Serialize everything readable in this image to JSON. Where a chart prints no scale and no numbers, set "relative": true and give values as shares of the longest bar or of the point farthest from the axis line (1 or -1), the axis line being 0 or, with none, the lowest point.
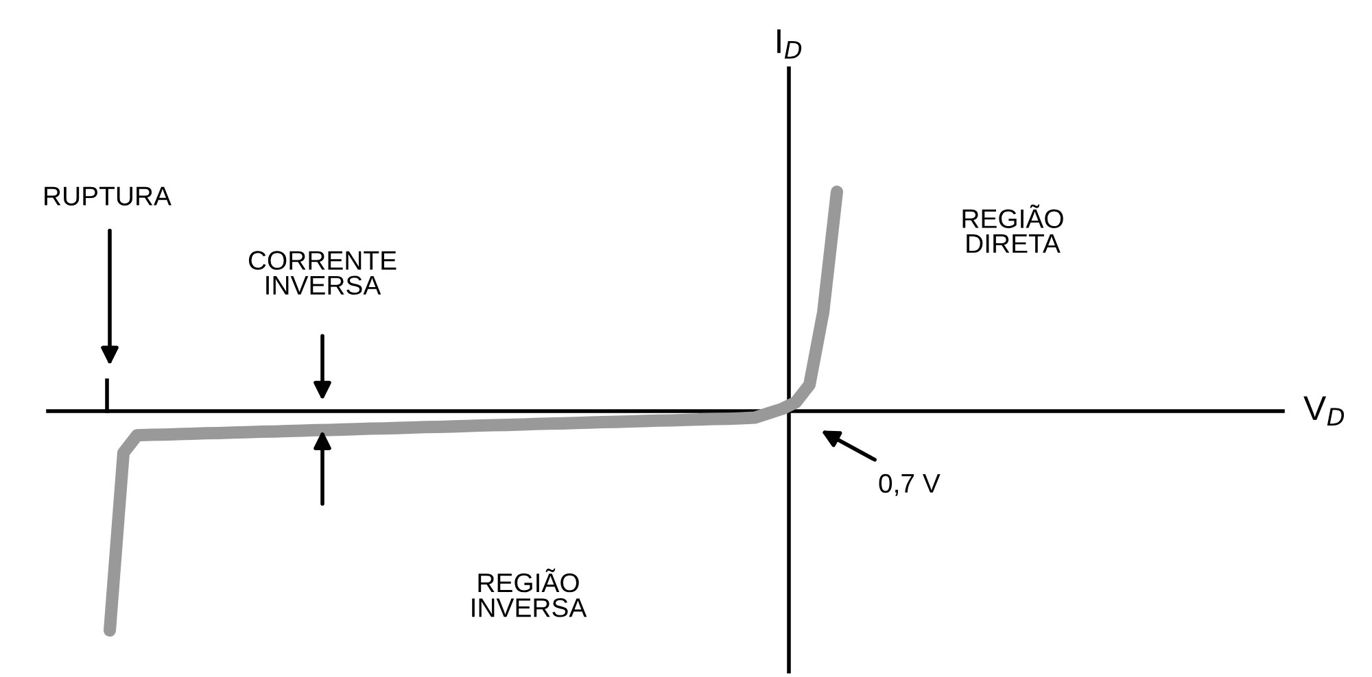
{
  "chart_data": {
    "type": "line",
    "relative": true,
    "xlabel": "V$_{D}$",
    "ylabel": "I$_{D}$",
    "categories": [
      null,
      null,
      null,
      null,
      null,
      null,
      null,
      null,
      null,
      null,
      null,
      null,
      null,
      null,
      null,
      null,
      null,
      null,
      null,
      null,
      null,
      null,
      null,
      null,
      null,
      null,
      null,
      null,
      null,
      null,
      null,
      null,
      null,
      null,
      null,
      null,
      null,
      null,
      null,
      null,
      null,
      null,
      null,
      null,
      null,
      null,
      null,
      null,
      null,
      null,
      null,
      null,
      null,
      null,
      null,
      null,
      null,
      null,
      null,
      null,
      null,
      null,
      null,
      null,
      null,
      null,
      null,
      null,
      null,
      null,
      null,
      null,
      null,
      null,
      null,
      null,
      null,
      null,
      null,
      null,
      null,
      null,
      null,
      null,
      null,
      null,
      null,
      null,
      null,
      null
    ],
    "series": [
      {
        "color": "#999999",
        "values": [
          null,
          null,
          null,
          null,
          -1.0,
          -0.19,
          -0.11,
          -0.108,
          -0.107,
          -0.105,
          -0.103,
          -0.101,
          -0.1,
          -0.098,
          -0.096,
          -0.094,
          -0.093,
          -0.091,
          -0.089,
          -0.087,
          -0.086,
          -0.084,
          -0.082,
          -0.08,
          -0.079,
          -0.077,
          -0.075,
          -0.073,
          -0.072,
          -0.07,
          -0.068,
          -0.066,
          -0.064,
          -0.063,
          -0.061,
          -0.059,
          -0.057,
          -0.056,
          -0.054,
          -0.052,
          -0.05,
          -0.049,
          -0.047,
          -0.045,
          -0.043,
          -0.042,
          -0.04,
          -0.038,
          -0.036,
          -0.035,
          -0.033,
          -0.03,
          -0.01,
          0.01,
          0.04,
          0.12,
          0.45,
          1.0,
          null,
          null,
          null,
          null,
          null,
          null,
          null,
          null,
          null,
          null,
          null,
          null,
          null,
          null,
          null,
          null,
          null,
          null,
          null,
          null,
          null,
          null,
          null,
          null,
          null,
          null,
          null,
          null,
          null,
          null,
          null,
          null
        ]
      }
    ],
    "marker": "none",
    "line_style": "solid",
    "annotations": [
      "RUPTURA",
      "CORRENTE\nINVERSA",
      "REGIÃO\nDIRETA",
      "REGIÃO\nINVERSA",
      "0,7 V"
    ]
  }
}
